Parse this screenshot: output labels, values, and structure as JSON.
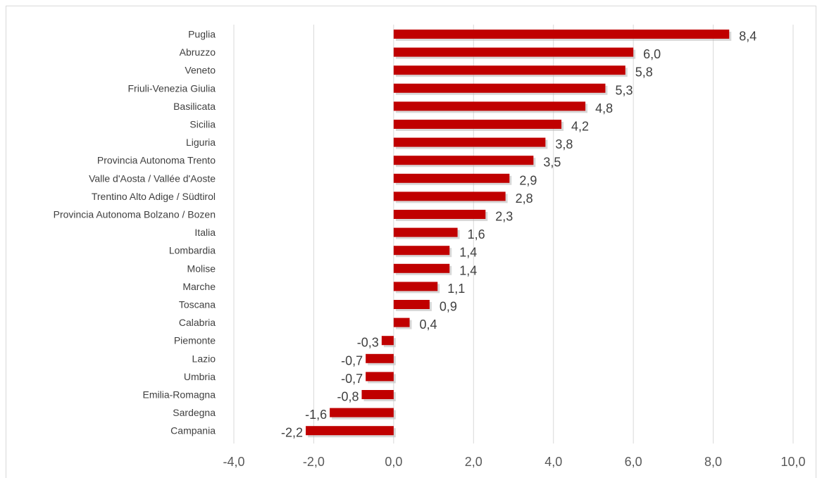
{
  "chart_data": {
    "type": "bar",
    "orientation": "horizontal",
    "title": "",
    "xlabel": "",
    "ylabel": "",
    "xlim": [
      -4,
      10
    ],
    "ticks": [
      -4,
      -2,
      0,
      2,
      4,
      6,
      8,
      10
    ],
    "tick_labels": [
      "-4,0",
      "-2,0",
      "0,0",
      "2,0",
      "4,0",
      "6,0",
      "8,0",
      "10,0"
    ],
    "grid": "vertical",
    "legend": "none",
    "bar_color": "#c00000",
    "categories": [
      "Puglia",
      "Abruzzo",
      "Veneto",
      "Friuli-Venezia Giulia",
      "Basilicata",
      "Sicilia",
      "Liguria",
      "Provincia Autonoma Trento",
      "Valle d'Aosta / Vallée d'Aoste",
      "Trentino Alto Adige / Südtirol",
      "Provincia Autonoma Bolzano / Bozen",
      "Italia",
      "Lombardia",
      "Molise",
      "Marche",
      "Toscana",
      "Calabria",
      "Piemonte",
      "Lazio",
      "Umbria",
      "Emilia-Romagna",
      "Sardegna",
      "Campania"
    ],
    "values": [
      8.4,
      6.0,
      5.8,
      5.3,
      4.8,
      4.2,
      3.8,
      3.5,
      2.9,
      2.8,
      2.3,
      1.6,
      1.4,
      1.4,
      1.1,
      0.9,
      0.4,
      -0.3,
      -0.7,
      -0.7,
      -0.8,
      -1.6,
      -2.2
    ],
    "value_labels": [
      "8,4",
      "6,0",
      "5,8",
      "5,3",
      "4,8",
      "4,2",
      "3,8",
      "3,5",
      "2,9",
      "2,8",
      "2,3",
      "1,6",
      "1,4",
      "1,4",
      "1,1",
      "0,9",
      "0,4",
      "-0,3",
      "-0,7",
      "-0,7",
      "-0,8",
      "-1,6",
      "-2,2"
    ]
  }
}
